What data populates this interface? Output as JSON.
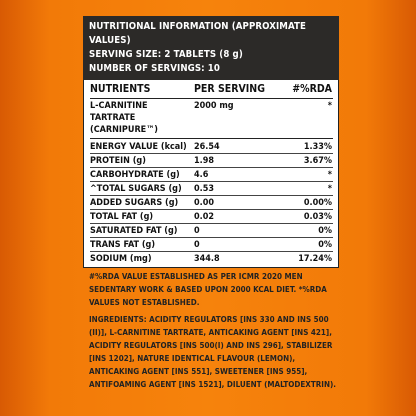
{
  "header": {
    "title": "NUTRITIONAL INFORMATION (APPROXIMATE VALUES)",
    "serving_size": "SERVING SIZE: 2 TABLETS (8 g)",
    "servings": "NUMBER OF SERVINGS: 10"
  },
  "table": {
    "col_nutrients": "NUTRIENTS",
    "col_per_serving": "PER SERVING",
    "col_rda": "#%RDA",
    "carnitine": {
      "name_line1": "L-CARNITINE TARTRATE",
      "name_line2": "(CARNIPURE™)",
      "value": "2000 mg",
      "rda": "*"
    },
    "rows": [
      {
        "name": "ENERGY VALUE (kcal)",
        "value": "26.54",
        "rda": "1.33%"
      },
      {
        "name": "PROTEIN (g)",
        "value": "1.98",
        "rda": "3.67%"
      },
      {
        "name": "CARBOHYDRATE (g)",
        "value": "4.6",
        "rda": "*"
      },
      {
        "name": "^TOTAL SUGARS (g)",
        "value": "0.53",
        "rda": "*"
      },
      {
        "name": "ADDED SUGARS (g)",
        "value": "0.00",
        "rda": "0.00%"
      },
      {
        "name": "TOTAL FAT (g)",
        "value": "0.02",
        "rda": "0.03%"
      },
      {
        "name": "SATURATED FAT (g)",
        "value": "0",
        "rda": "0%"
      },
      {
        "name": "TRANS FAT (g)",
        "value": "0",
        "rda": "0%"
      },
      {
        "name": "SODIUM (mg)",
        "value": "344.8",
        "rda": "17.24%"
      }
    ]
  },
  "footer": {
    "rda_note": "#%RDA VALUE ESTABLISHED AS PER ICMR 2020 MEN SEDENTARY WORK & BASED UPON 2000 KCAL DIET. *%RDA VALUES NOT ESTABLISHED.",
    "ingredients_label": "INGREDIENTS:",
    "ingredients_text": "ACIDITY REGULATORS [INS 330 AND INS 500 (II)], L-CARNITINE TARTRATE, ANTICAKING AGENT [INS 421], ACIDITY REGULATORS [INS 500(I) AND INS 296], STABILIZER [INS 1202], NATURE IDENTICAL FLAVOUR (LEMON), ANTICAKING AGENT [INS 551], SWEETENER [INS 955], ANTIFOAMING AGENT [INS 1521], DILUENT (MALTODEXTRIN)."
  }
}
